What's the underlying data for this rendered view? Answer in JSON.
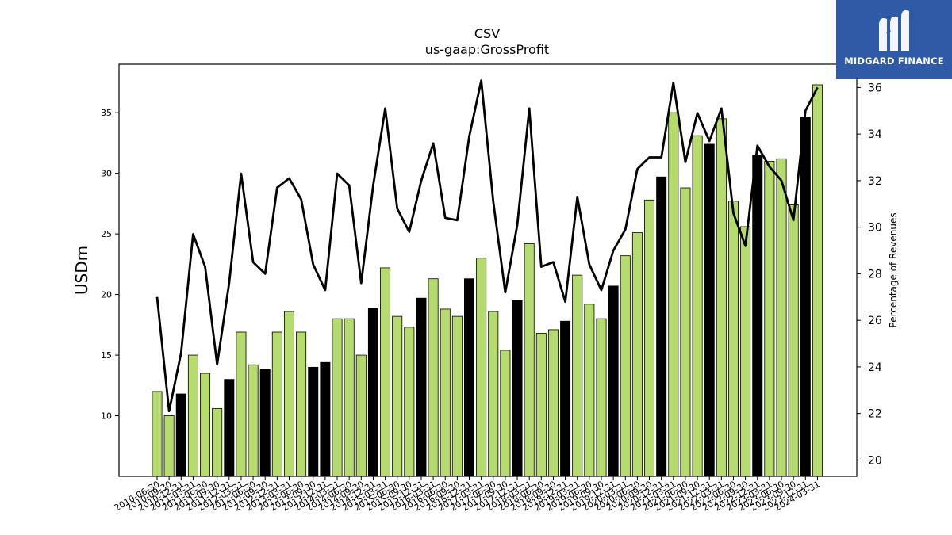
{
  "chart_data": {
    "type": "bar+line",
    "title": "CSV",
    "subtitle": "us-gaap:GrossProfit",
    "ylabel": "USDm",
    "y2label": "Percentage of Revenues",
    "ylim": [
      5,
      39
    ],
    "y2lim": [
      19.3,
      37.0
    ],
    "yticks": [
      10,
      15,
      20,
      25,
      30,
      35
    ],
    "y2ticks": [
      20,
      22,
      24,
      26,
      28,
      30,
      32,
      34,
      36
    ],
    "categories": [
      "2010-06-30",
      "2010-09-30",
      "2010-12-31",
      "2011-03-31",
      "2011-06-30",
      "2011-09-30",
      "2011-12-31",
      "2012-03-31",
      "2012-06-30",
      "2012-09-30",
      "2012-12-31",
      "2013-03-31",
      "2013-06-30",
      "2013-09-30",
      "2013-12-31",
      "2014-03-31",
      "2014-06-30",
      "2014-09-30",
      "2014-12-31",
      "2015-03-31",
      "2015-06-30",
      "2015-09-30",
      "2015-12-31",
      "2016-03-31",
      "2016-06-30",
      "2016-09-30",
      "2016-12-31",
      "2017-03-31",
      "2017-06-30",
      "2017-09-30",
      "2017-12-31",
      "2018-03-31",
      "2018-06-30",
      "2018-09-30",
      "2018-12-31",
      "2019-03-31",
      "2019-06-30",
      "2019-09-30",
      "2019-12-31",
      "2020-03-31",
      "2020-06-30",
      "2020-09-30",
      "2020-12-31",
      "2021-03-31",
      "2021-06-30",
      "2021-09-30",
      "2021-12-31",
      "2022-03-31",
      "2022-06-30",
      "2022-09-30",
      "2022-12-31",
      "2023-03-31",
      "2023-06-30",
      "2023-09-30",
      "2023-12-31",
      "2024-03-31"
    ],
    "series": [
      {
        "kind": "bar",
        "values": [
          12.0,
          10.0,
          11.8,
          15.0,
          13.5,
          10.6,
          13.0,
          16.9,
          14.2,
          13.8,
          16.9,
          18.6,
          16.9,
          14.0,
          14.4,
          18.0,
          18.0,
          15.0,
          18.9,
          22.2,
          18.2,
          17.3,
          19.7,
          21.3,
          18.8,
          18.2,
          21.3,
          23.0,
          18.6,
          15.4,
          19.5,
          24.2,
          16.8,
          17.1,
          17.8,
          21.6,
          19.2,
          18.0,
          20.7,
          23.2,
          25.1,
          27.8,
          29.7,
          35.0,
          28.8,
          33.1,
          32.4,
          34.5,
          27.7,
          25.6,
          31.5,
          31.0,
          31.2,
          27.4,
          34.6,
          37.3
        ],
        "highlight": [
          2,
          6,
          9,
          13,
          14,
          18,
          22,
          26,
          30,
          34,
          38,
          42,
          46,
          50,
          54
        ]
      },
      {
        "kind": "line",
        "axis": "right",
        "values": [
          27.0,
          22.1,
          24.6,
          29.7,
          28.3,
          24.1,
          27.6,
          32.3,
          28.5,
          28.0,
          31.7,
          32.1,
          31.2,
          28.4,
          27.3,
          32.3,
          31.8,
          27.6,
          31.8,
          35.1,
          30.8,
          29.8,
          32.0,
          33.6,
          30.4,
          30.3,
          33.9,
          36.3,
          31.1,
          27.2,
          30.1,
          35.1,
          28.3,
          28.5,
          26.8,
          31.3,
          28.4,
          27.3,
          29.0,
          29.9,
          32.5,
          33.0,
          33.0,
          36.2,
          32.8,
          34.9,
          33.7,
          35.1,
          30.6,
          29.2,
          33.5,
          32.6,
          32.0,
          30.3,
          35.0,
          36.0
        ]
      }
    ],
    "colors": {
      "bar": "#b5db6e",
      "bar_highlight": "#000000",
      "line": "#000000"
    },
    "logo": {
      "text": "MIDGARD FINANCE"
    }
  }
}
